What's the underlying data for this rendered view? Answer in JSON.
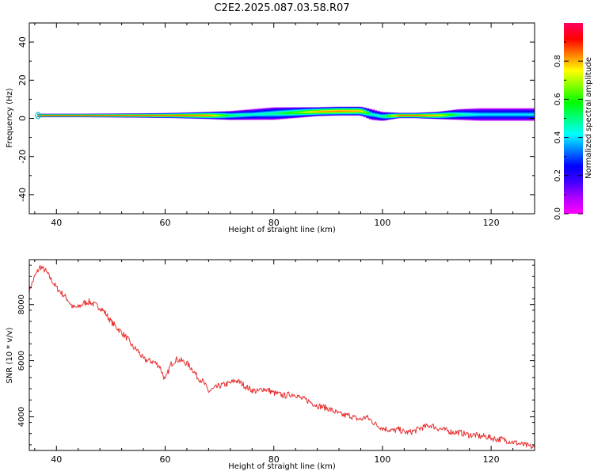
{
  "title": "C2E2.2025.087.03.58.R07",
  "chart_data": [
    {
      "type": "heatmap",
      "xlabel": "Height of straight line (km)",
      "ylabel": "Frequency (Hz)",
      "xlim": [
        35,
        128
      ],
      "ylim": [
        -50,
        50
      ],
      "xticks": [
        40,
        60,
        80,
        100,
        120
      ],
      "yticks": [
        40,
        20,
        0,
        -20,
        -40
      ],
      "grid": false,
      "colorbar": {
        "label": "Normalized spectral amplitude",
        "range": [
          0,
          1
        ],
        "ticks": [
          "0.0",
          "0.2",
          "0.4",
          "0.6",
          "0.8"
        ],
        "colormap": [
          "#ff00ff",
          "#b000ff",
          "#4000ff",
          "#0000ff",
          "#0080ff",
          "#00ffff",
          "#00ff80",
          "#00ff00",
          "#80ff00",
          "#ffff00",
          "#ff8000",
          "#ff0000",
          "#ff0060"
        ]
      },
      "ridge": {
        "x": [
          36,
          45,
          55,
          62,
          68,
          72,
          76,
          80,
          84,
          88,
          92,
          96,
          98,
          100,
          103,
          106,
          110,
          114,
          118,
          122,
          126,
          128
        ],
        "center_hz": [
          1.5,
          1.5,
          1.5,
          1.5,
          1.5,
          1.5,
          2.0,
          2.5,
          3.0,
          3.5,
          3.8,
          3.8,
          2.0,
          1.0,
          1.5,
          1.5,
          1.5,
          2.0,
          2.0,
          2.0,
          2.0,
          2.0
        ],
        "halfwidth_hz": [
          1.0,
          1.0,
          1.2,
          1.5,
          2.0,
          2.5,
          3.0,
          3.5,
          3.0,
          2.5,
          2.5,
          2.5,
          3.0,
          2.5,
          1.5,
          1.5,
          2.0,
          3.0,
          3.5,
          3.5,
          3.5,
          3.5
        ],
        "peak_amp": [
          1.0,
          1.0,
          1.0,
          1.0,
          0.95,
          0.6,
          0.5,
          0.55,
          0.7,
          0.9,
          0.95,
          0.9,
          0.5,
          0.55,
          1.0,
          1.0,
          0.9,
          0.55,
          0.45,
          0.45,
          0.45,
          0.45
        ]
      }
    },
    {
      "type": "line",
      "xlabel": "Height of straight line (km)",
      "ylabel": "SNR (10 * v/v)",
      "xlim": [
        35,
        128
      ],
      "ylim": [
        2800,
        9600
      ],
      "xticks": [
        40,
        60,
        80,
        100,
        120
      ],
      "yticks": [
        8000,
        6000,
        4000
      ],
      "grid": false,
      "color": "#e83030",
      "series": [
        {
          "x": [
            35,
            36,
            37,
            38,
            39,
            40,
            41,
            42,
            43,
            44,
            45,
            46,
            47,
            48,
            49,
            50,
            51,
            52,
            53,
            54,
            55,
            56,
            57,
            58,
            59,
            60,
            61,
            62,
            63,
            64,
            65,
            66,
            67,
            68,
            69,
            70,
            71,
            72,
            73,
            74,
            75,
            76,
            77,
            78,
            79,
            80,
            81,
            82,
            83,
            84,
            85,
            86,
            87,
            88,
            89,
            90,
            91,
            92,
            93,
            94,
            95,
            96,
            97,
            98,
            99,
            100,
            101,
            102,
            103,
            104,
            105,
            106,
            107,
            108,
            109,
            110,
            111,
            112,
            113,
            114,
            115,
            116,
            117,
            118,
            119,
            120,
            121,
            122,
            123,
            124,
            125,
            126,
            127,
            128
          ],
          "y": [
            8500,
            9000,
            9350,
            9200,
            8900,
            8600,
            8400,
            8200,
            7900,
            7900,
            8050,
            8100,
            8000,
            7900,
            7700,
            7400,
            7200,
            7000,
            6800,
            6500,
            6350,
            6050,
            6000,
            5950,
            5800,
            5300,
            5850,
            6050,
            6000,
            5900,
            5700,
            5400,
            5250,
            4900,
            5000,
            5100,
            5150,
            5200,
            5300,
            5200,
            5050,
            4950,
            4900,
            5000,
            4950,
            4850,
            4800,
            4750,
            4800,
            4800,
            4650,
            4600,
            4500,
            4400,
            4350,
            4300,
            4200,
            4100,
            4050,
            4050,
            3950,
            3900,
            4000,
            3850,
            3700,
            3600,
            3550,
            3500,
            3550,
            3450,
            3450,
            3500,
            3600,
            3650,
            3700,
            3600,
            3550,
            3500,
            3450,
            3450,
            3400,
            3350,
            3350,
            3300,
            3300,
            3250,
            3200,
            3200,
            3150,
            3100,
            3050,
            3000,
            2950,
            2900
          ]
        }
      ]
    }
  ]
}
